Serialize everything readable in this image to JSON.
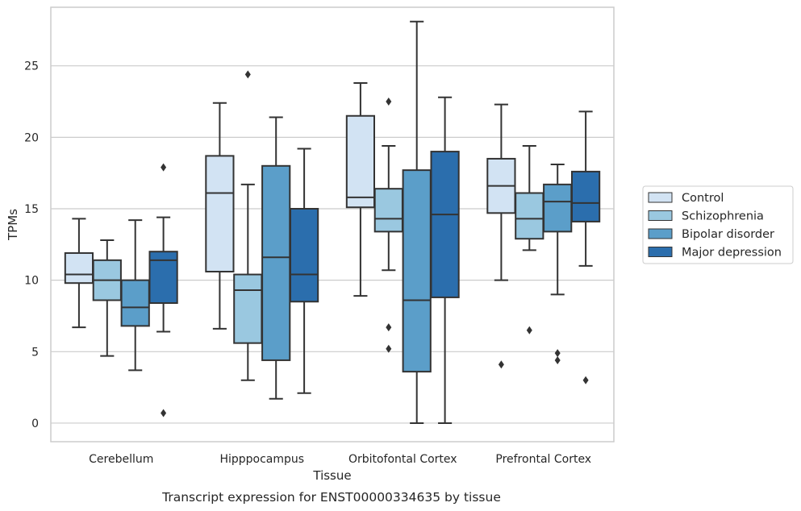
{
  "caption": "Transcript expression for ENST00000334635 by tissue",
  "chart_data": {
    "type": "boxplot",
    "xlabel": "Tissue",
    "ylabel": "TPMs",
    "ylim": [
      -1.3,
      29.1
    ],
    "yticks": [
      0,
      5,
      10,
      15,
      20,
      25
    ],
    "grid": "horizontal",
    "legend_position": "right",
    "categories": [
      "Cerebellum",
      "Hipppocampus",
      "Orbitofontal Cortex",
      "Prefrontal Cortex"
    ],
    "series": [
      {
        "name": "Control",
        "color": "#d2e3f3",
        "boxes": [
          {
            "whislo": 6.7,
            "q1": 9.8,
            "med": 10.4,
            "q3": 11.9,
            "whishi": 14.3,
            "fliers": []
          },
          {
            "whislo": 6.6,
            "q1": 10.6,
            "med": 16.1,
            "q3": 18.7,
            "whishi": 22.4,
            "fliers": []
          },
          {
            "whislo": 8.9,
            "q1": 15.1,
            "med": 15.8,
            "q3": 21.5,
            "whishi": 23.8,
            "fliers": []
          },
          {
            "whislo": 10.0,
            "q1": 14.7,
            "med": 16.6,
            "q3": 18.5,
            "whishi": 22.3,
            "fliers": [
              4.1
            ]
          }
        ]
      },
      {
        "name": "Schizophrenia",
        "color": "#9ac8e0",
        "boxes": [
          {
            "whislo": 4.7,
            "q1": 8.6,
            "med": 10.0,
            "q3": 11.4,
            "whishi": 12.8,
            "fliers": []
          },
          {
            "whislo": 3.0,
            "q1": 5.6,
            "med": 9.3,
            "q3": 10.4,
            "whishi": 16.7,
            "fliers": [
              24.4
            ]
          },
          {
            "whislo": 10.7,
            "q1": 13.4,
            "med": 14.3,
            "q3": 16.4,
            "whishi": 19.4,
            "fliers": [
              22.5,
              6.7,
              5.2
            ]
          },
          {
            "whislo": 12.1,
            "q1": 12.9,
            "med": 14.3,
            "q3": 16.1,
            "whishi": 19.4,
            "fliers": [
              6.5
            ]
          }
        ]
      },
      {
        "name": "Bipolar disorder",
        "color": "#5b9ec9",
        "boxes": [
          {
            "whislo": 3.7,
            "q1": 6.8,
            "med": 8.1,
            "q3": 10.0,
            "whishi": 14.2,
            "fliers": []
          },
          {
            "whislo": 1.7,
            "q1": 4.4,
            "med": 11.6,
            "q3": 18.0,
            "whishi": 21.4,
            "fliers": []
          },
          {
            "whislo": 0.0,
            "q1": 3.6,
            "med": 8.6,
            "q3": 17.7,
            "whishi": 28.1,
            "fliers": []
          },
          {
            "whislo": 9.0,
            "q1": 13.4,
            "med": 15.5,
            "q3": 16.7,
            "whishi": 18.1,
            "fliers": [
              4.9,
              4.4
            ]
          }
        ]
      },
      {
        "name": "Major depression",
        "color": "#2b6ead",
        "boxes": [
          {
            "whislo": 6.4,
            "q1": 8.4,
            "med": 11.4,
            "q3": 12.0,
            "whishi": 14.4,
            "fliers": [
              17.9,
              0.7
            ]
          },
          {
            "whislo": 2.1,
            "q1": 8.5,
            "med": 10.4,
            "q3": 15.0,
            "whishi": 19.2,
            "fliers": []
          },
          {
            "whislo": 0.0,
            "q1": 8.8,
            "med": 14.6,
            "q3": 19.0,
            "whishi": 22.8,
            "fliers": []
          },
          {
            "whislo": 11.0,
            "q1": 14.1,
            "med": 15.4,
            "q3": 17.6,
            "whishi": 21.8,
            "fliers": [
              3.0
            ]
          }
        ]
      }
    ]
  }
}
